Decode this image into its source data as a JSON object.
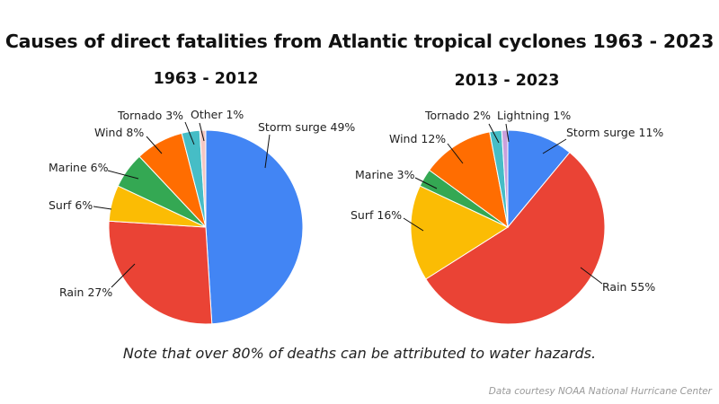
{
  "title": "Causes of direct fatalities from Atlantic tropical cyclones 1963 - 2023",
  "note": "Note that over 80% of deaths can be attributed to water hazards.",
  "credit": "Data courtesy NOAA National Hurricane Center",
  "colors": {
    "storm_surge": "#4285f4",
    "rain": "#ea4335",
    "surf": "#fbbc04",
    "marine": "#34a853",
    "wind": "#ff6d01",
    "tornado": "#46bdc6",
    "other": "#f4c7c3",
    "lightning": "#c9a0dc"
  },
  "chart_data": [
    {
      "type": "pie",
      "title": "1963 - 2012",
      "slices": [
        {
          "label": "Storm surge",
          "value": 49,
          "text": "Storm surge 49%",
          "color_key": "storm_surge"
        },
        {
          "label": "Rain",
          "value": 27,
          "text": "Rain 27%",
          "color_key": "rain"
        },
        {
          "label": "Surf",
          "value": 6,
          "text": "Surf 6%",
          "color_key": "surf"
        },
        {
          "label": "Marine",
          "value": 6,
          "text": "Marine 6%",
          "color_key": "marine"
        },
        {
          "label": "Wind",
          "value": 8,
          "text": "Wind 8%",
          "color_key": "wind"
        },
        {
          "label": "Tornado",
          "value": 3,
          "text": "Tornado 3%",
          "color_key": "tornado"
        },
        {
          "label": "Other",
          "value": 1,
          "text": "Other 1%",
          "color_key": "other"
        }
      ]
    },
    {
      "type": "pie",
      "title": "2013 - 2023",
      "slices": [
        {
          "label": "Storm surge",
          "value": 11,
          "text": "Storm surge 11%",
          "color_key": "storm_surge"
        },
        {
          "label": "Rain",
          "value": 55,
          "text": "Rain 55%",
          "color_key": "rain"
        },
        {
          "label": "Surf",
          "value": 16,
          "text": "Surf 16%",
          "color_key": "surf"
        },
        {
          "label": "Marine",
          "value": 3,
          "text": "Marine 3%",
          "color_key": "marine"
        },
        {
          "label": "Wind",
          "value": 12,
          "text": "Wind 12%",
          "color_key": "wind"
        },
        {
          "label": "Tornado",
          "value": 2,
          "text": "Tornado 2%",
          "color_key": "tornado"
        },
        {
          "label": "Lightning",
          "value": 1,
          "text": "Lightning 1%",
          "color_key": "lightning"
        }
      ]
    }
  ]
}
